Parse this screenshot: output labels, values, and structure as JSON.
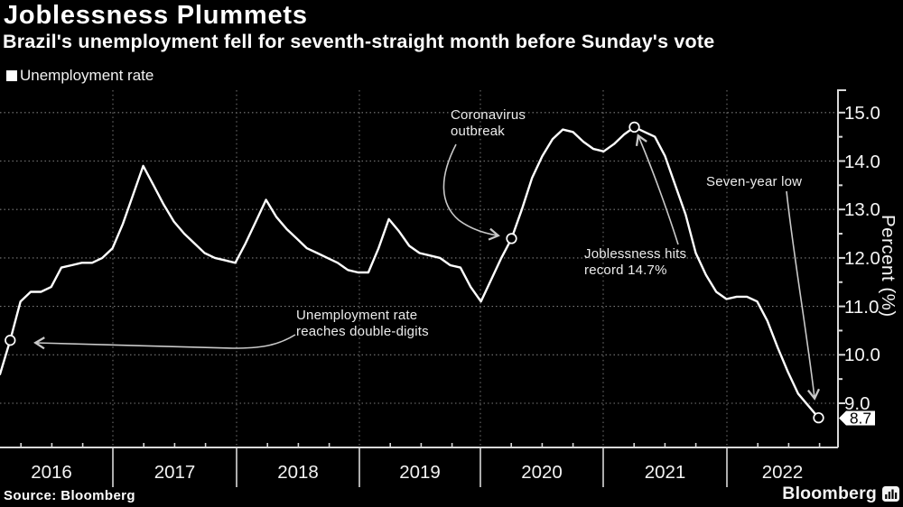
{
  "header": {
    "title": "Joblessness Plummets",
    "subtitle": "Brazil's unemployment fell for seventh-straight month before Sunday's vote"
  },
  "legend": {
    "label": "Unemployment rate"
  },
  "footer": {
    "source": "Source: Bloomberg",
    "logo": "Bloomberg"
  },
  "colors": {
    "background": "#000000",
    "line": "#ffffff",
    "grid": "#7a7a7a",
    "axis": "#d9d9d9",
    "arrow": "#c9c9c9",
    "tag_bg": "#ffffff",
    "tag_text": "#000000"
  },
  "chart_data": {
    "type": "line",
    "title": "Joblessness Plummets",
    "subtitle": "Brazil's unemployment fell for seventh-straight month before Sunday's vote",
    "legend_position": "top-left",
    "grid": true,
    "x_axis": {
      "tick_labels": [
        "2016",
        "2017",
        "2018",
        "2019",
        "2020",
        "2021",
        "2022"
      ]
    },
    "y_axis": {
      "label": "Percent (%)",
      "tick_values": [
        9,
        10,
        11,
        12,
        13,
        14,
        15
      ],
      "tick_labels": [
        "9.0",
        "10.0",
        "11.0",
        "12.0",
        "13.0",
        "14.0",
        "15.0"
      ],
      "minor_tick_step": 0.5,
      "range": [
        8.0,
        15.45
      ]
    },
    "series": [
      {
        "name": "Unemployment rate",
        "color": "#ffffff",
        "values": [
          9.6,
          10.3,
          11.1,
          11.3,
          11.3,
          11.4,
          11.8,
          11.85,
          11.9,
          11.9,
          12.0,
          12.2,
          12.7,
          13.3,
          13.9,
          13.5,
          13.1,
          12.75,
          12.5,
          12.3,
          12.1,
          12.0,
          11.95,
          11.9,
          12.3,
          12.75,
          13.2,
          12.85,
          12.6,
          12.4,
          12.2,
          12.1,
          12.0,
          11.9,
          11.75,
          11.7,
          11.7,
          12.2,
          12.8,
          12.55,
          12.25,
          12.1,
          12.05,
          12.0,
          11.85,
          11.8,
          11.4,
          11.1,
          11.55,
          12.0,
          12.4,
          13.0,
          13.65,
          14.1,
          14.45,
          14.65,
          14.6,
          14.4,
          14.25,
          14.2,
          14.35,
          14.55,
          14.7,
          14.6,
          14.5,
          14.1,
          13.5,
          12.9,
          12.1,
          11.65,
          11.3,
          11.15,
          11.2,
          11.2,
          11.1,
          10.7,
          10.15,
          9.65,
          9.2,
          8.95,
          8.7
        ]
      }
    ],
    "marker_point_indices": [
      1,
      50,
      62,
      80
    ],
    "end_label": "8.7",
    "annotations": [
      {
        "id": "double-digits",
        "lines": [
          "Unemployment rate",
          "reaches double-digits"
        ],
        "point_value": 10.3
      },
      {
        "id": "coronavirus",
        "lines": [
          "Coronavirus",
          "outbreak"
        ],
        "point_value": 12.4
      },
      {
        "id": "record",
        "lines": [
          "Joblessness hits",
          "record 14.7%"
        ],
        "point_value": 14.7
      },
      {
        "id": "seven-year-low",
        "lines": [
          "Seven-year low"
        ],
        "point_value": 8.7
      }
    ]
  }
}
